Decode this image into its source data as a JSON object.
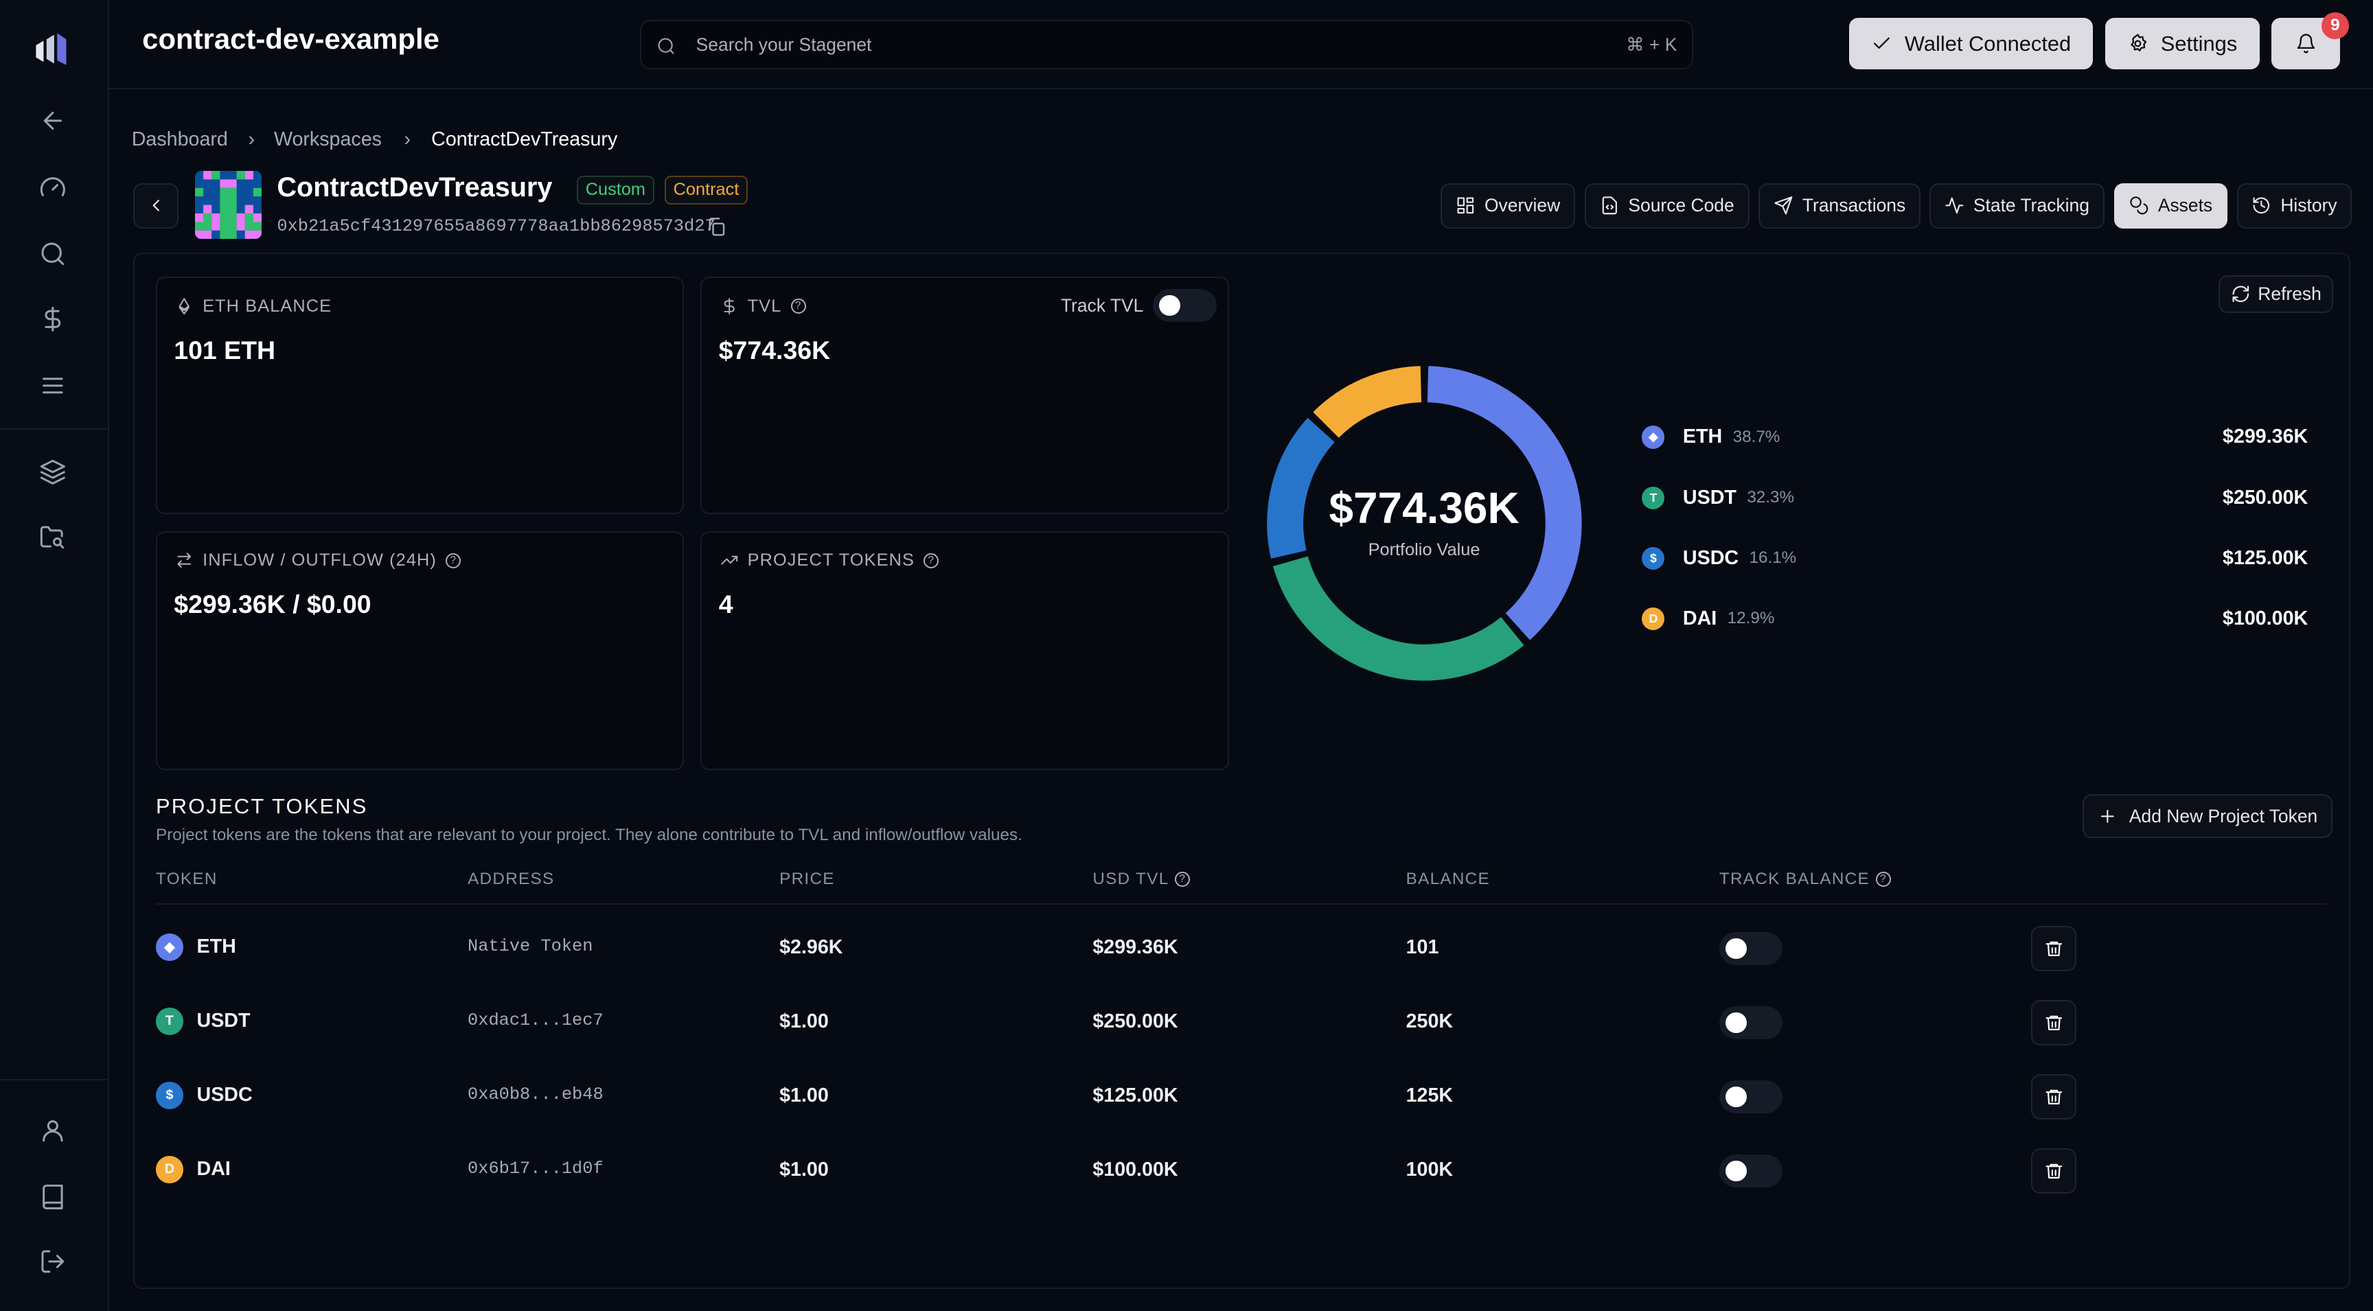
{
  "app": {
    "title": "contract-dev-example"
  },
  "search": {
    "placeholder": "Search your Stagenet",
    "shortcut": "⌘ + K"
  },
  "header_buttons": {
    "wallet": "Wallet Connected",
    "settings": "Settings",
    "notifications_count": "9"
  },
  "breadcrumb": [
    "Dashboard",
    "Workspaces",
    "ContractDevTreasury"
  ],
  "contract": {
    "name": "ContractDevTreasury",
    "tags": [
      "Custom",
      "Contract"
    ],
    "address": "0xb21a5cf431297655a8697778aa1bb86298573d27"
  },
  "tabs": [
    {
      "label": "Overview",
      "icon": "layout-grid-icon"
    },
    {
      "label": "Source Code",
      "icon": "file-code-icon"
    },
    {
      "label": "Transactions",
      "icon": "send-icon"
    },
    {
      "label": "State Tracking",
      "icon": "activity-icon"
    },
    {
      "label": "Assets",
      "icon": "coins-icon",
      "active": true
    },
    {
      "label": "History",
      "icon": "history-icon"
    }
  ],
  "refresh_label": "Refresh",
  "cards": {
    "eth_balance": {
      "label": "ETH BALANCE",
      "value": "101 ETH"
    },
    "tvl": {
      "label": "TVL",
      "value": "$774.36K",
      "track_label": "Track TVL",
      "track_on": false
    },
    "flow": {
      "label": "INFLOW / OUTFLOW (24H)",
      "value": "$299.36K / $0.00"
    },
    "project_tokens": {
      "label": "PROJECT TOKENS",
      "value": "4"
    }
  },
  "chart_data": {
    "type": "pie",
    "center_value": "$774.36K",
    "center_label": "Portfolio Value",
    "slices": [
      {
        "name": "ETH",
        "percent": 38.7,
        "pct_label": "38.7%",
        "value": "$299.36K",
        "color": "#627EEA"
      },
      {
        "name": "USDT",
        "percent": 32.3,
        "pct_label": "32.3%",
        "value": "$250.00K",
        "color": "#26A17B"
      },
      {
        "name": "USDC",
        "percent": 16.1,
        "pct_label": "16.1%",
        "value": "$125.00K",
        "color": "#2775CA"
      },
      {
        "name": "DAI",
        "percent": 12.9,
        "pct_label": "12.9%",
        "value": "$100.00K",
        "color": "#F5AC37"
      }
    ]
  },
  "project_tokens": {
    "title": "PROJECT TOKENS",
    "description": "Project tokens are the tokens that are relevant to your project. They alone contribute to TVL and inflow/outflow values.",
    "add_label": "Add New Project Token",
    "columns": [
      "TOKEN",
      "ADDRESS",
      "PRICE",
      "USD TVL",
      "BALANCE",
      "TRACK BALANCE"
    ],
    "rows": [
      {
        "token": "ETH",
        "address": "Native Token",
        "price": "$2.96K",
        "tvl": "$299.36K",
        "balance": "101",
        "color": "#627EEA",
        "glyph": "◆"
      },
      {
        "token": "USDT",
        "address": "0xdac1...1ec7",
        "price": "$1.00",
        "tvl": "$250.00K",
        "balance": "250K",
        "color": "#26A17B",
        "glyph": "T"
      },
      {
        "token": "USDC",
        "address": "0xa0b8...eb48",
        "price": "$1.00",
        "tvl": "$125.00K",
        "balance": "125K",
        "color": "#2775CA",
        "glyph": "$"
      },
      {
        "token": "DAI",
        "address": "0x6b17...1d0f",
        "price": "$1.00",
        "tvl": "$100.00K",
        "balance": "100K",
        "color": "#F5AC37",
        "glyph": "D"
      }
    ]
  }
}
